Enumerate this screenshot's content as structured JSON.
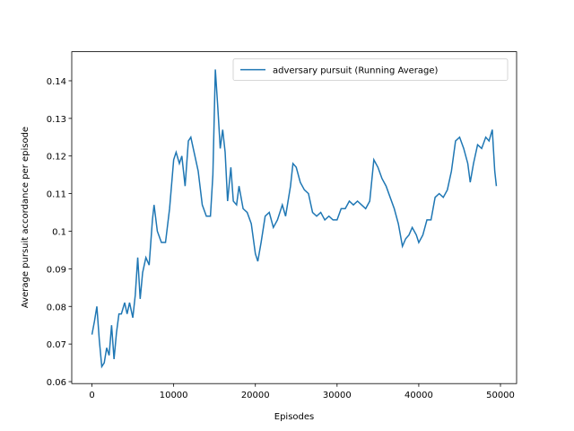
{
  "chart_data": {
    "type": "line",
    "xlabel": "Episodes",
    "ylabel": "Average pursuit accordance per episode",
    "legend": "upper right",
    "grid": false,
    "xlim": [
      -2475,
      51975
    ],
    "ylim": [
      0.05948,
      0.14773
    ],
    "xticks": [
      0,
      10000,
      20000,
      30000,
      40000,
      50000
    ],
    "yticks": [
      0.06,
      0.07,
      0.08,
      0.09,
      0.1,
      0.11,
      0.12,
      0.13,
      0.14
    ],
    "x": [
      0,
      300,
      600,
      900,
      1200,
      1500,
      1800,
      2100,
      2400,
      2700,
      3000,
      3300,
      3600,
      4000,
      4300,
      4600,
      5000,
      5300,
      5600,
      5900,
      6200,
      6600,
      7000,
      7400,
      7600,
      8000,
      8500,
      9000,
      9500,
      10000,
      10300,
      10700,
      11000,
      11400,
      11800,
      12100,
      12500,
      13000,
      13500,
      14000,
      14500,
      14800,
      15100,
      15400,
      15700,
      16000,
      16300,
      16600,
      17000,
      17300,
      17700,
      18000,
      18500,
      19000,
      19500,
      20000,
      20300,
      20700,
      21200,
      21700,
      22200,
      22700,
      23300,
      23700,
      24300,
      24600,
      25000,
      25500,
      26000,
      26500,
      27000,
      27500,
      28000,
      28500,
      29000,
      29500,
      30000,
      30500,
      31000,
      31500,
      32000,
      32500,
      33000,
      33500,
      34000,
      34500,
      35000,
      35500,
      36000,
      36500,
      37000,
      37500,
      38000,
      38400,
      38800,
      39200,
      39700,
      40000,
      40500,
      41000,
      41500,
      42000,
      42500,
      43000,
      43500,
      44000,
      44500,
      45000,
      45500,
      46000,
      46300,
      46700,
      47200,
      47700,
      48200,
      48600,
      49000,
      49300,
      49500
    ],
    "series": [
      {
        "name": "adversary pursuit (Running Average)",
        "color": "#1f77b4",
        "values": [
          0.0725,
          0.076,
          0.08,
          0.071,
          0.064,
          0.065,
          0.069,
          0.067,
          0.075,
          0.066,
          0.073,
          0.078,
          0.078,
          0.081,
          0.078,
          0.081,
          0.077,
          0.083,
          0.093,
          0.082,
          0.089,
          0.093,
          0.091,
          0.103,
          0.107,
          0.1,
          0.097,
          0.097,
          0.106,
          0.119,
          0.121,
          0.118,
          0.12,
          0.112,
          0.124,
          0.125,
          0.121,
          0.116,
          0.107,
          0.104,
          0.104,
          0.115,
          0.143,
          0.133,
          0.122,
          0.127,
          0.121,
          0.108,
          0.117,
          0.108,
          0.107,
          0.112,
          0.106,
          0.105,
          0.102,
          0.094,
          0.092,
          0.097,
          0.104,
          0.105,
          0.101,
          0.103,
          0.107,
          0.104,
          0.112,
          0.118,
          0.117,
          0.113,
          0.111,
          0.11,
          0.105,
          0.104,
          0.105,
          0.103,
          0.104,
          0.103,
          0.103,
          0.106,
          0.106,
          0.108,
          0.107,
          0.108,
          0.107,
          0.106,
          0.108,
          0.119,
          0.117,
          0.114,
          0.112,
          0.109,
          0.106,
          0.102,
          0.096,
          0.098,
          0.099,
          0.101,
          0.099,
          0.097,
          0.099,
          0.103,
          0.103,
          0.109,
          0.11,
          0.109,
          0.111,
          0.116,
          0.124,
          0.125,
          0.122,
          0.118,
          0.113,
          0.118,
          0.123,
          0.122,
          0.125,
          0.124,
          0.127,
          0.116,
          0.112
        ]
      }
    ]
  }
}
